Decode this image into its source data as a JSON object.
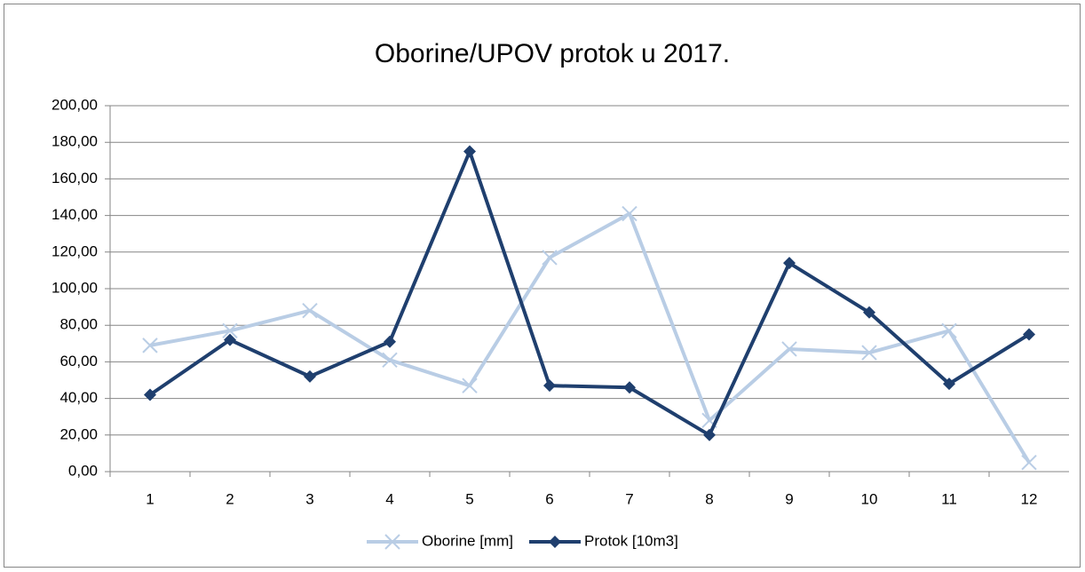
{
  "chart_data": {
    "type": "line",
    "title": "Oborine/UPOV protok u 2017.",
    "categories": [
      "1",
      "2",
      "3",
      "4",
      "5",
      "6",
      "7",
      "8",
      "9",
      "10",
      "11",
      "12"
    ],
    "series": [
      {
        "name": "Oborine [mm]",
        "color": "#b9cde5",
        "marker": "x",
        "values": [
          69,
          77,
          88,
          61,
          47,
          117,
          141,
          28,
          67,
          65,
          77,
          5
        ]
      },
      {
        "name": "Protok [10m3]",
        "color": "#1f3f6e",
        "marker": "diamond",
        "values": [
          42,
          72,
          52,
          71,
          175,
          47,
          46,
          20,
          114,
          87,
          48,
          75
        ]
      }
    ],
    "ylim": [
      0,
      200
    ],
    "yticks": [
      {
        "value": 0,
        "label": "0,00"
      },
      {
        "value": 20,
        "label": "20,00"
      },
      {
        "value": 40,
        "label": "40,00"
      },
      {
        "value": 60,
        "label": "60,00"
      },
      {
        "value": 80,
        "label": "80,00"
      },
      {
        "value": 100,
        "label": "100,00"
      },
      {
        "value": 120,
        "label": "120,00"
      },
      {
        "value": 140,
        "label": "140,00"
      },
      {
        "value": 160,
        "label": "160,00"
      },
      {
        "value": 180,
        "label": "180,00"
      },
      {
        "value": 200,
        "label": "200,00"
      }
    ],
    "grid": true,
    "legend": "bottom"
  }
}
